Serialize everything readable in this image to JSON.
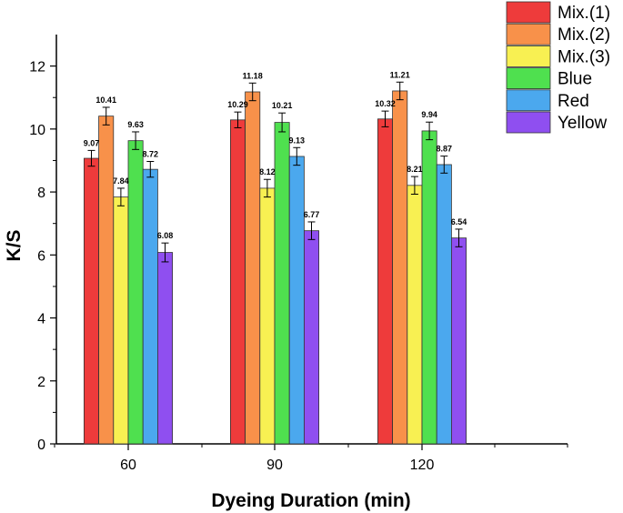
{
  "chart_data": {
    "type": "bar",
    "title": "",
    "xlabel": "Dyeing Duration (min)",
    "ylabel": "K/S",
    "categories": [
      "60",
      "90",
      "120"
    ],
    "ylim": [
      0,
      13
    ],
    "yticks": [
      0,
      2,
      4,
      6,
      8,
      10,
      12
    ],
    "legend_position": "top-right",
    "grid": false,
    "series": [
      {
        "name": "Mix.(1)",
        "color": "#ee3b3b",
        "values": [
          9.07,
          10.29,
          10.32
        ],
        "errors": [
          0.25,
          0.25,
          0.25
        ],
        "labels": [
          "9.07",
          "10.29",
          "10.32"
        ]
      },
      {
        "name": "Mix.(2)",
        "color": "#f8914a",
        "values": [
          10.41,
          11.18,
          11.21
        ],
        "errors": [
          0.28,
          0.28,
          0.28
        ],
        "labels": [
          "10.41",
          "11.18",
          "11.21"
        ]
      },
      {
        "name": "Mix.(3)",
        "color": "#f8f052",
        "values": [
          7.84,
          8.12,
          8.21
        ],
        "errors": [
          0.28,
          0.28,
          0.28
        ],
        "labels": [
          "7.84",
          "8.12",
          "8.21"
        ]
      },
      {
        "name": "Blue",
        "color": "#4fe04f",
        "values": [
          9.63,
          10.21,
          9.94
        ],
        "errors": [
          0.28,
          0.3,
          0.28
        ],
        "labels": [
          "9.63",
          "10.21",
          "9.94"
        ]
      },
      {
        "name": "Red",
        "color": "#4ba8ee",
        "values": [
          8.72,
          9.13,
          8.87
        ],
        "errors": [
          0.25,
          0.28,
          0.27
        ],
        "labels": [
          "8.72",
          "9.13",
          "8.87"
        ]
      },
      {
        "name": "Yellow",
        "color": "#8f4ff0",
        "values": [
          6.08,
          6.77,
          6.54
        ],
        "errors": [
          0.3,
          0.28,
          0.28
        ],
        "labels": [
          "6.08",
          "6.77",
          "6.54"
        ]
      }
    ]
  }
}
